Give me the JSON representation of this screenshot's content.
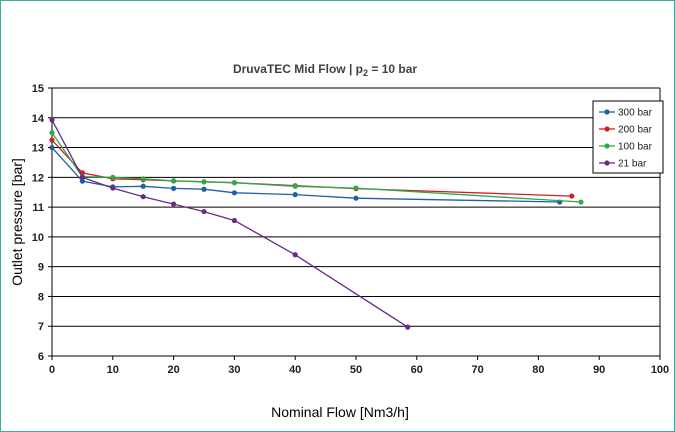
{
  "chart_data": {
    "type": "line",
    "title": "DruvaTEC Mid Flow",
    "title_suffix": "p",
    "title_subscript": "2",
    "title_value": " = 10 bar",
    "xlabel": "Nominal Flow [Nm3/h]",
    "ylabel": "Outlet pressure [bar]",
    "xlim": [
      0,
      100
    ],
    "ylim": [
      6,
      15
    ],
    "x_ticks": [
      0,
      10,
      20,
      30,
      40,
      50,
      60,
      70,
      80,
      90,
      100
    ],
    "y_ticks": [
      6,
      7,
      8,
      9,
      10,
      11,
      12,
      13,
      14,
      15
    ],
    "grid": "horizontal",
    "legend_position": "top-right",
    "series": [
      {
        "name": "300 bar",
        "color": "#1f5fa6",
        "points": [
          [
            0,
            13.0
          ],
          [
            5,
            11.87
          ],
          [
            10,
            11.68
          ],
          [
            15,
            11.7
          ],
          [
            20,
            11.63
          ],
          [
            25,
            11.6
          ],
          [
            30,
            11.48
          ],
          [
            40,
            11.42
          ],
          [
            50,
            11.3
          ],
          [
            83.5,
            11.17
          ]
        ]
      },
      {
        "name": "200 bar",
        "color": "#d0202a",
        "points": [
          [
            0,
            13.25
          ],
          [
            5,
            12.15
          ],
          [
            10,
            11.95
          ],
          [
            15,
            11.92
          ],
          [
            20,
            11.88
          ],
          [
            25,
            11.85
          ],
          [
            30,
            11.82
          ],
          [
            40,
            11.72
          ],
          [
            50,
            11.62
          ],
          [
            85.5,
            11.37
          ]
        ]
      },
      {
        "name": "100 bar",
        "color": "#2ea84a",
        "points": [
          [
            0,
            13.5
          ],
          [
            5,
            12.02
          ],
          [
            10,
            12.0
          ],
          [
            15,
            11.95
          ],
          [
            20,
            11.88
          ],
          [
            25,
            11.85
          ],
          [
            30,
            11.82
          ],
          [
            40,
            11.7
          ],
          [
            50,
            11.64
          ],
          [
            87,
            11.17
          ]
        ]
      },
      {
        "name": "21 bar",
        "color": "#6a2a8a",
        "points": [
          [
            0,
            13.93
          ],
          [
            5,
            12.0
          ],
          [
            10,
            11.64
          ],
          [
            15,
            11.35
          ],
          [
            20,
            11.1
          ],
          [
            25,
            10.85
          ],
          [
            30,
            10.55
          ],
          [
            40,
            9.4
          ],
          [
            58.5,
            6.97
          ]
        ]
      }
    ]
  }
}
